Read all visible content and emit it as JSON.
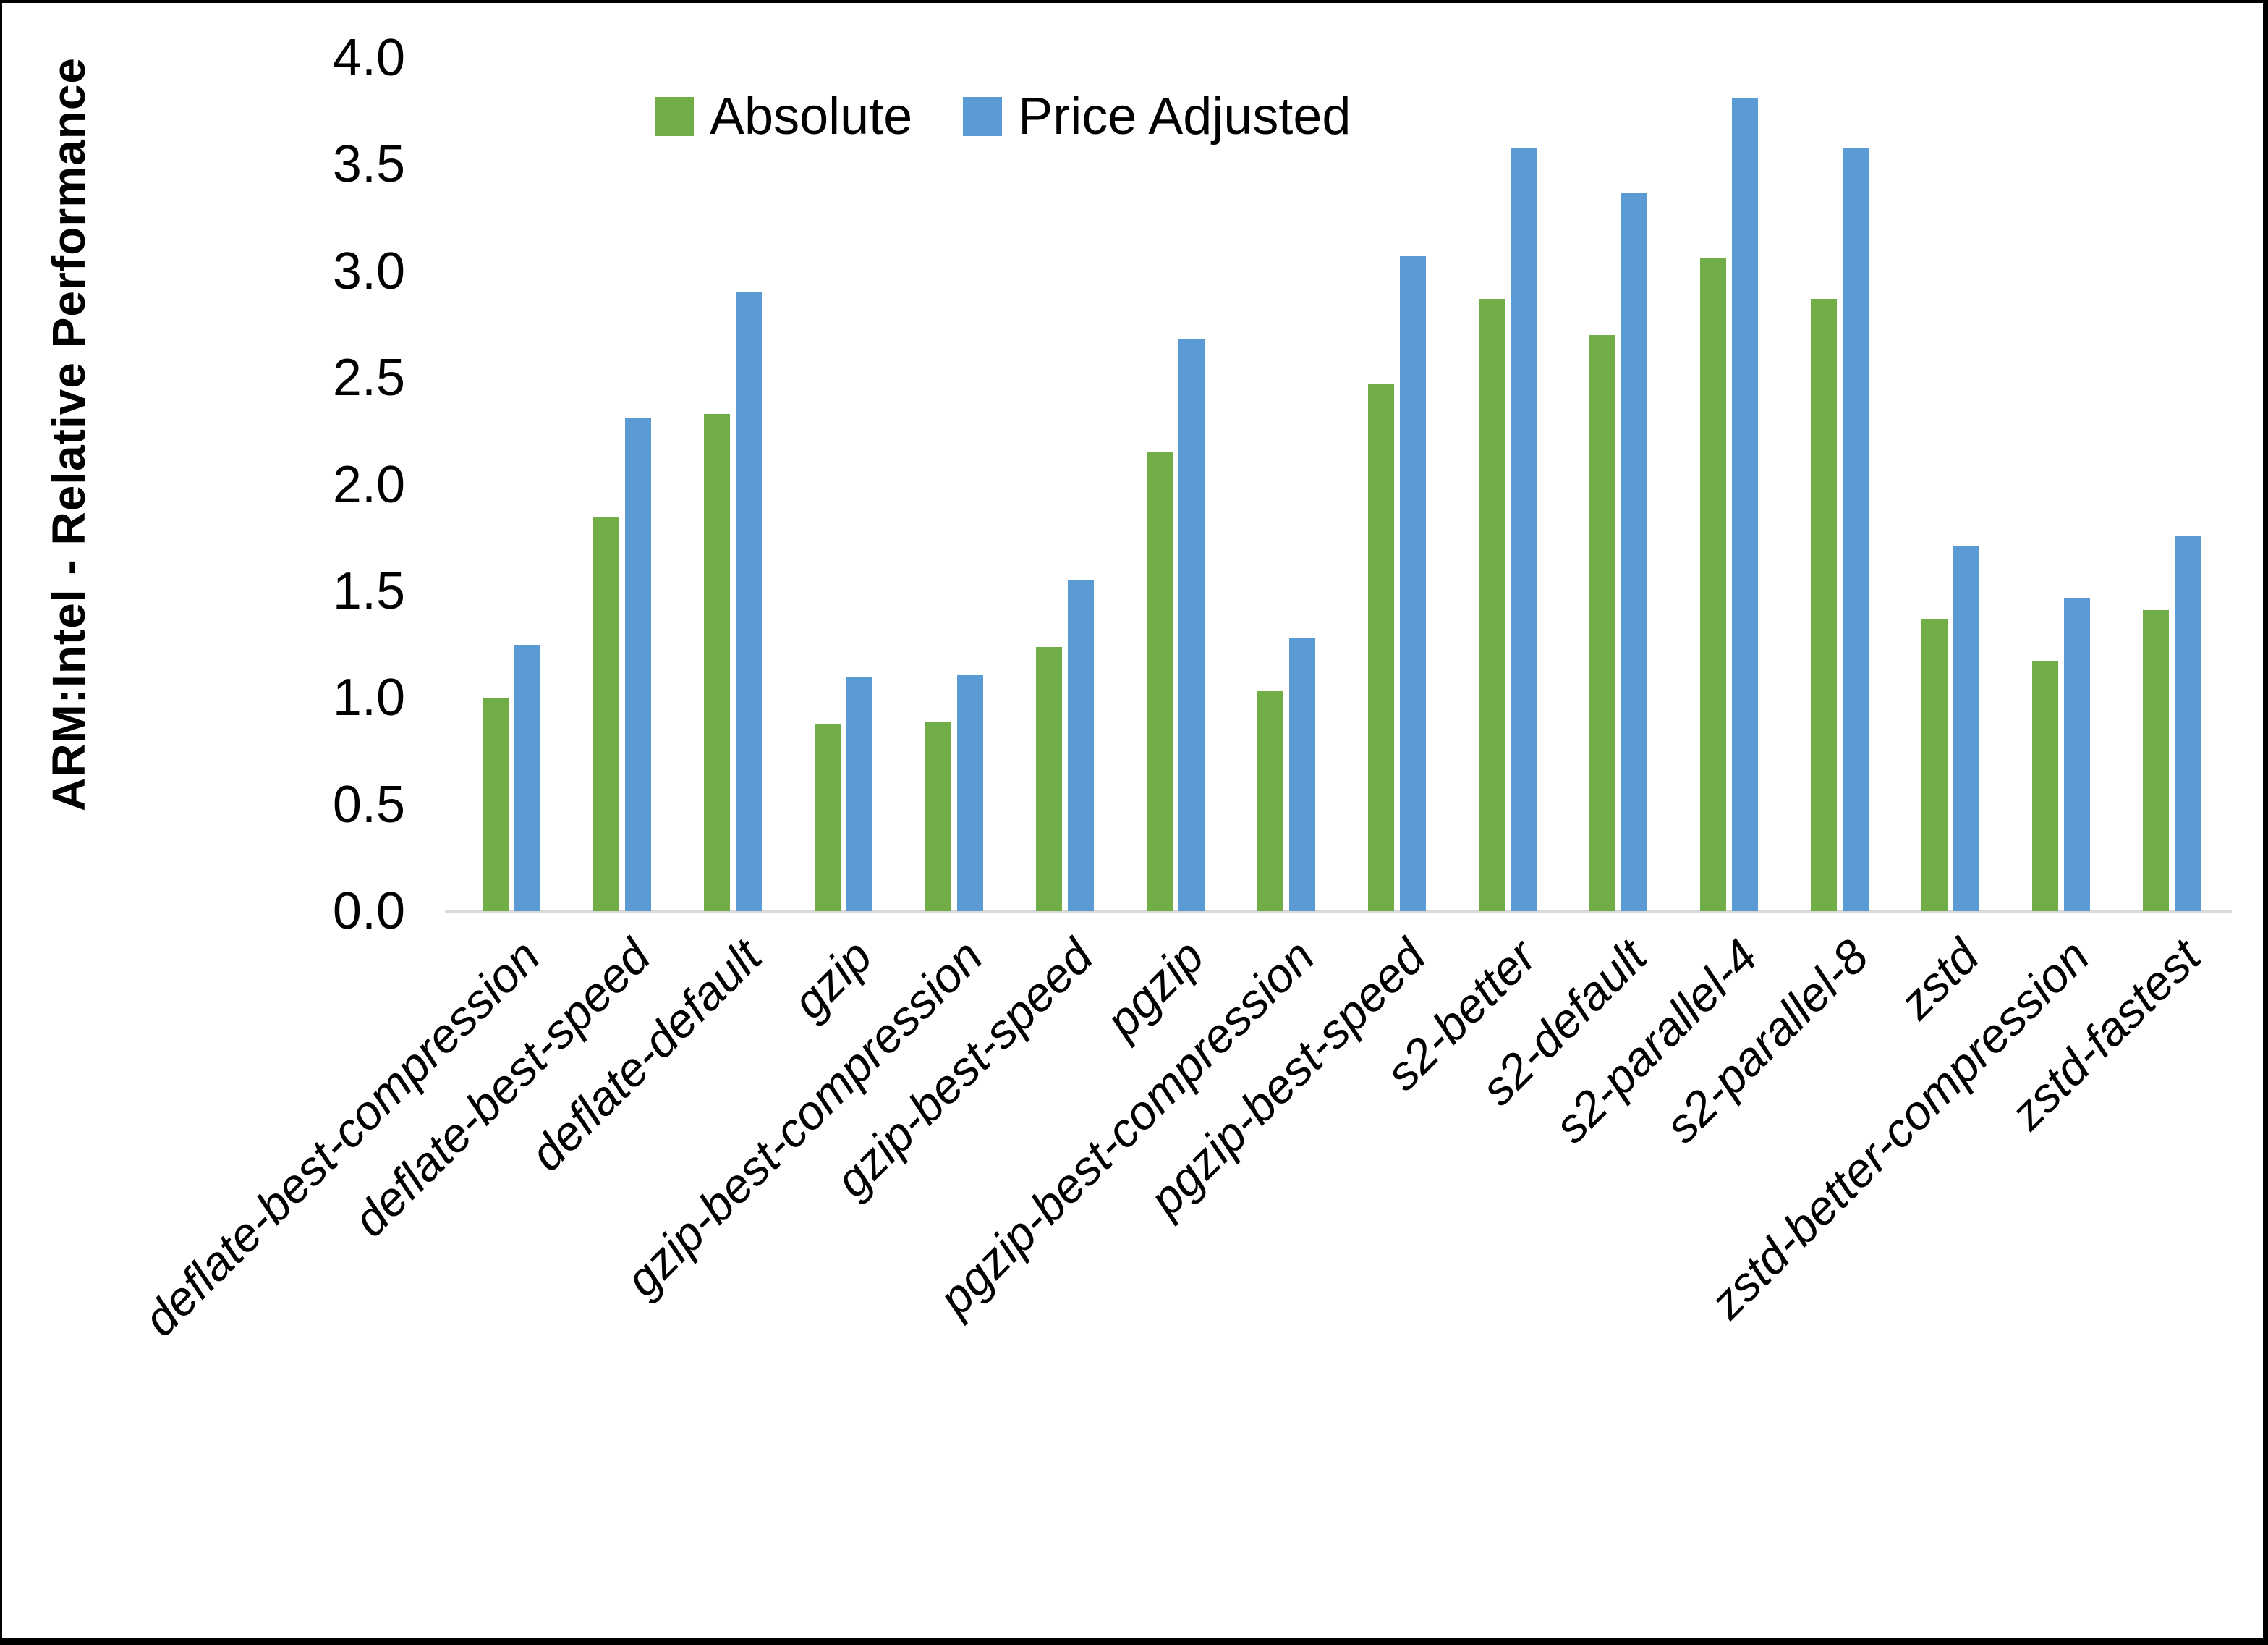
{
  "frame": {
    "background": "#ffffff",
    "border_color": "#000000"
  },
  "axis": {
    "line_color": "#d9d9d9",
    "text_color": "#000000"
  },
  "legend": {
    "position": "top",
    "items": [
      {
        "label": "Absolute",
        "color": "#70ad47"
      },
      {
        "label": "Price Adjusted",
        "color": "#5b9bd5"
      }
    ]
  },
  "chart_data": {
    "type": "bar",
    "title": "",
    "xlabel": "",
    "ylabel": "ARM:Intel - Relative Performance",
    "ylim": [
      0,
      4
    ],
    "ytick_step": 0.5,
    "yticks": [
      "0.0",
      "0.5",
      "1.0",
      "1.5",
      "2.0",
      "2.5",
      "3.0",
      "3.5",
      "4.0"
    ],
    "grid": false,
    "legend_position": "top",
    "categories": [
      "deflate-best-compression",
      "deflate-best-speed",
      "deflate-default",
      "gzip",
      "gzip-best-compression",
      "gzip-best-speed",
      "pgzip",
      "pgzip-best-compression",
      "pgzip-best-speed",
      "s2-better",
      "s2-default",
      "s2-parallel-4",
      "s2-parallel-8",
      "zstd",
      "zstd-better-compression",
      "zstd-fastest"
    ],
    "series": [
      {
        "name": "Absolute",
        "color": "#70ad47",
        "values": [
          1.0,
          1.85,
          2.33,
          0.88,
          0.89,
          1.24,
          2.15,
          1.03,
          2.47,
          2.87,
          2.7,
          3.06,
          2.87,
          1.37,
          1.17,
          1.41
        ]
      },
      {
        "name": "Price Adjusted",
        "color": "#5b9bd5",
        "values": [
          1.25,
          2.31,
          2.9,
          1.1,
          1.11,
          1.55,
          2.68,
          1.28,
          3.07,
          3.58,
          3.37,
          3.81,
          3.58,
          1.71,
          1.47,
          1.76
        ]
      }
    ]
  }
}
